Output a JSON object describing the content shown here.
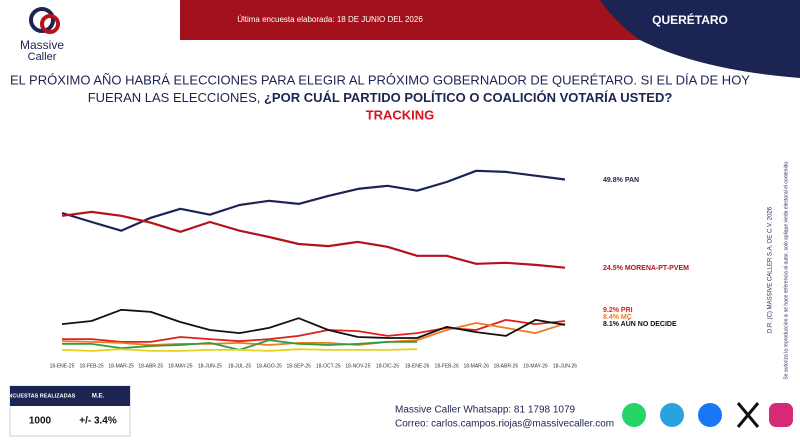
{
  "header": {
    "brand": "Massive",
    "brand2": "Caller",
    "date_note": "Última encuesta elaborada: 18 DE JUNIO DEL 2026",
    "state": "QUERÉTARO"
  },
  "question": {
    "line1": "EL PRÓXIMO AÑO HABRÁ ELECCIONES PARA ELEGIR AL PRÓXIMO GOBERNADOR DE QUERÉTARO. SI EL DÍA DE HOY",
    "line2": "FUERAN LAS ELECCIONES, ",
    "emphasis": "¿POR CUÁL PARTIDO POLÍTICO O COALICIÓN VOTARÍA USTED?"
  },
  "chart_data": {
    "type": "line",
    "title": "TRACKING",
    "categories": [
      "18-ENE-25",
      "18-FEB-25",
      "18-MAR-25",
      "18-ABR-25",
      "18-MAY-25",
      "18-JUN-25",
      "18-JUL-25",
      "18-AGO-25",
      "18-SEP-25",
      "18-OCT-25",
      "18-NOV-25",
      "18-DIC-25",
      "18-ENE-26",
      "18-FEB-26",
      "18-MAR-26",
      "18-ABR-26",
      "18-MAY-26",
      "18-JUN-26"
    ],
    "ylim": [
      0,
      60
    ],
    "series": [
      {
        "name": "PAN",
        "color": "#1c2453",
        "values": [
          40.2,
          37.6,
          35.1,
          38.8,
          41.4,
          39.7,
          42.5,
          43.7,
          42.8,
          45.1,
          47.1,
          48.0,
          46.6,
          49.1,
          52.3,
          52.0,
          50.9,
          49.8
        ],
        "value_labels": [
          null,
          null,
          null,
          null,
          null,
          null,
          null,
          null,
          null,
          null,
          null,
          null,
          null,
          null,
          null,
          null,
          null,
          "49.8%"
        ]
      },
      {
        "name": "MORENA-PT-PVEM",
        "color": "#b5121b",
        "values": [
          39.4,
          40.5,
          39.4,
          37.4,
          34.8,
          37.6,
          35.1,
          33.3,
          31.3,
          30.7,
          31.9,
          30.5,
          27.9,
          27.9,
          25.6,
          25.9,
          25.3,
          24.5
        ],
        "value_labels": [
          null,
          null,
          null,
          null,
          null,
          null,
          null,
          null,
          null,
          null,
          null,
          null,
          null,
          null,
          null,
          null,
          null,
          "24.5%"
        ]
      },
      {
        "name": "PRI",
        "color": "#e0201b",
        "values": [
          4.0,
          4.0,
          3.2,
          3.2,
          4.6,
          4.0,
          3.4,
          4.0,
          4.9,
          6.6,
          6.3,
          4.9,
          5.7,
          7.2,
          6.6,
          9.5,
          8.3,
          9.2
        ],
        "value_labels": [
          null,
          null,
          null,
          null,
          null,
          null,
          null,
          null,
          null,
          null,
          null,
          null,
          null,
          null,
          null,
          null,
          null,
          "9.2%"
        ]
      },
      {
        "name": "MC",
        "color": "#f07a20",
        "values": [
          3.4,
          3.2,
          2.9,
          2.3,
          2.6,
          2.6,
          2.9,
          2.3,
          2.9,
          2.9,
          2.3,
          3.2,
          3.7,
          6.6,
          8.6,
          7.2,
          5.7,
          8.4
        ],
        "value_labels": [
          null,
          null,
          null,
          null,
          null,
          null,
          null,
          null,
          null,
          null,
          null,
          null,
          null,
          null,
          null,
          null,
          null,
          "8.4%"
        ]
      },
      {
        "name": "AÚN NO DECIDE",
        "color": "#111111",
        "values": [
          8.3,
          9.2,
          12.4,
          11.8,
          8.9,
          6.6,
          5.7,
          7.2,
          10.0,
          6.6,
          4.6,
          4.3,
          4.3,
          7.5,
          6.0,
          4.9,
          9.5,
          8.1
        ],
        "value_labels": [
          null,
          null,
          null,
          null,
          null,
          null,
          null,
          null,
          null,
          null,
          null,
          null,
          null,
          null,
          null,
          null,
          null,
          "8.1%"
        ]
      },
      {
        "color": "#2e9c3f",
        "values": [
          2.6,
          2.6,
          1.4,
          2.0,
          2.3,
          2.9,
          0.9,
          3.7,
          2.6,
          2.3,
          2.6,
          3.2,
          3.2,
          null,
          null,
          null,
          null,
          null
        ]
      },
      {
        "color": "#e6d21a",
        "values": [
          0.9,
          0.6,
          1.1,
          0.6,
          0.6,
          0.9,
          0.9,
          0.6,
          1.1,
          0.9,
          0.9,
          0.9,
          1.1,
          null,
          null,
          null,
          null,
          null
        ]
      }
    ]
  },
  "table": {
    "header": [
      "ENCUESTAS REALIZADAS",
      "M.E."
    ],
    "row": [
      "1000",
      "+/- 3.4%"
    ]
  },
  "footer": {
    "whatsapp": "Massive Caller Whatsapp: 81 1798 1079",
    "email": "Correo: carlos.campos.riojas@massivecaller.com"
  },
  "side": {
    "copyright": "D.R. (C) MASSIVE CALLER S.A. DE C.V. 2026",
    "notice": "Se autoriza la reproducción si se hace referencia al autor, solo aplique vieda electoral el contenido."
  }
}
